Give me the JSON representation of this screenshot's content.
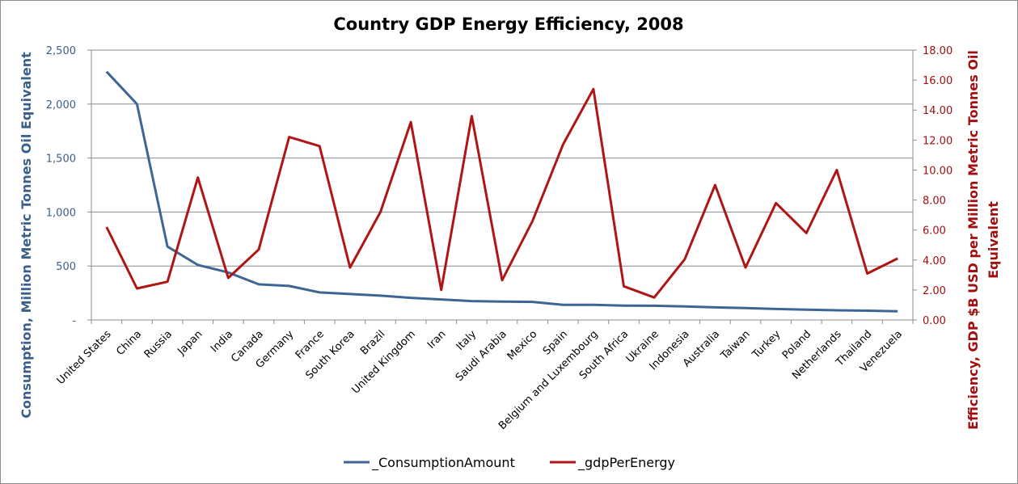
{
  "chart_data": {
    "type": "line",
    "title": "Country GDP Energy Efficiency, 2008",
    "categories": [
      "United States",
      "China",
      "Russia",
      "Japan",
      "India",
      "Canada",
      "Germany",
      "France",
      "South Korea",
      "Brazil",
      "United Kingdom",
      "Iran",
      "Italy",
      "Saudi Arabia",
      "Mexico",
      "Spain",
      "Belgium and Luxembourg",
      "South Africa",
      "Ukraine",
      "Indonesia",
      "Australia",
      "Taiwan",
      "Turkey",
      "Poland",
      "Netherlands",
      "Thailand",
      "Venezuela"
    ],
    "y_left": {
      "label": "Consumption,  Million Metric Tonnes Oil Equivalent",
      "range": [
        0,
        2500
      ],
      "ticks": [
        "-",
        "500",
        "1,000",
        "1,500",
        "2,000",
        "2,500"
      ],
      "tick_values": [
        0,
        500,
        1000,
        1500,
        2000,
        2500
      ],
      "color": "#3a5f8a"
    },
    "y_right": {
      "label_lines": [
        "Efficiency, GDP $B USD per Million Metric Tonnes Oil",
        "Equivalent"
      ],
      "range": [
        0,
        18
      ],
      "ticks": [
        "0.00",
        "2.00",
        "4.00",
        "6.00",
        "8.00",
        "10.00",
        "12.00",
        "14.00",
        "16.00",
        "18.00"
      ],
      "tick_values": [
        0,
        2,
        4,
        6,
        8,
        10,
        12,
        14,
        16,
        18
      ],
      "color": "#a01010"
    },
    "series": [
      {
        "name": "_ConsumptionAmount",
        "axis": "left",
        "color": "#3e6694",
        "values": [
          2300,
          2000,
          680,
          510,
          440,
          330,
          315,
          255,
          240,
          225,
          205,
          190,
          175,
          170,
          168,
          140,
          140,
          133,
          132,
          125,
          117,
          110,
          102,
          95,
          90,
          86,
          80
        ]
      },
      {
        "name": "_gdpPerEnergy",
        "axis": "right",
        "color": "#b01515",
        "values": [
          6.2,
          2.1,
          2.55,
          9.5,
          2.8,
          4.7,
          12.2,
          11.6,
          3.5,
          7.2,
          13.2,
          2.0,
          13.6,
          2.65,
          6.6,
          11.7,
          15.4,
          2.25,
          1.5,
          4.05,
          9.0,
          3.5,
          7.8,
          5.8,
          10.0,
          3.1,
          4.1
        ]
      }
    ],
    "grid": true,
    "legend": "bottom"
  }
}
